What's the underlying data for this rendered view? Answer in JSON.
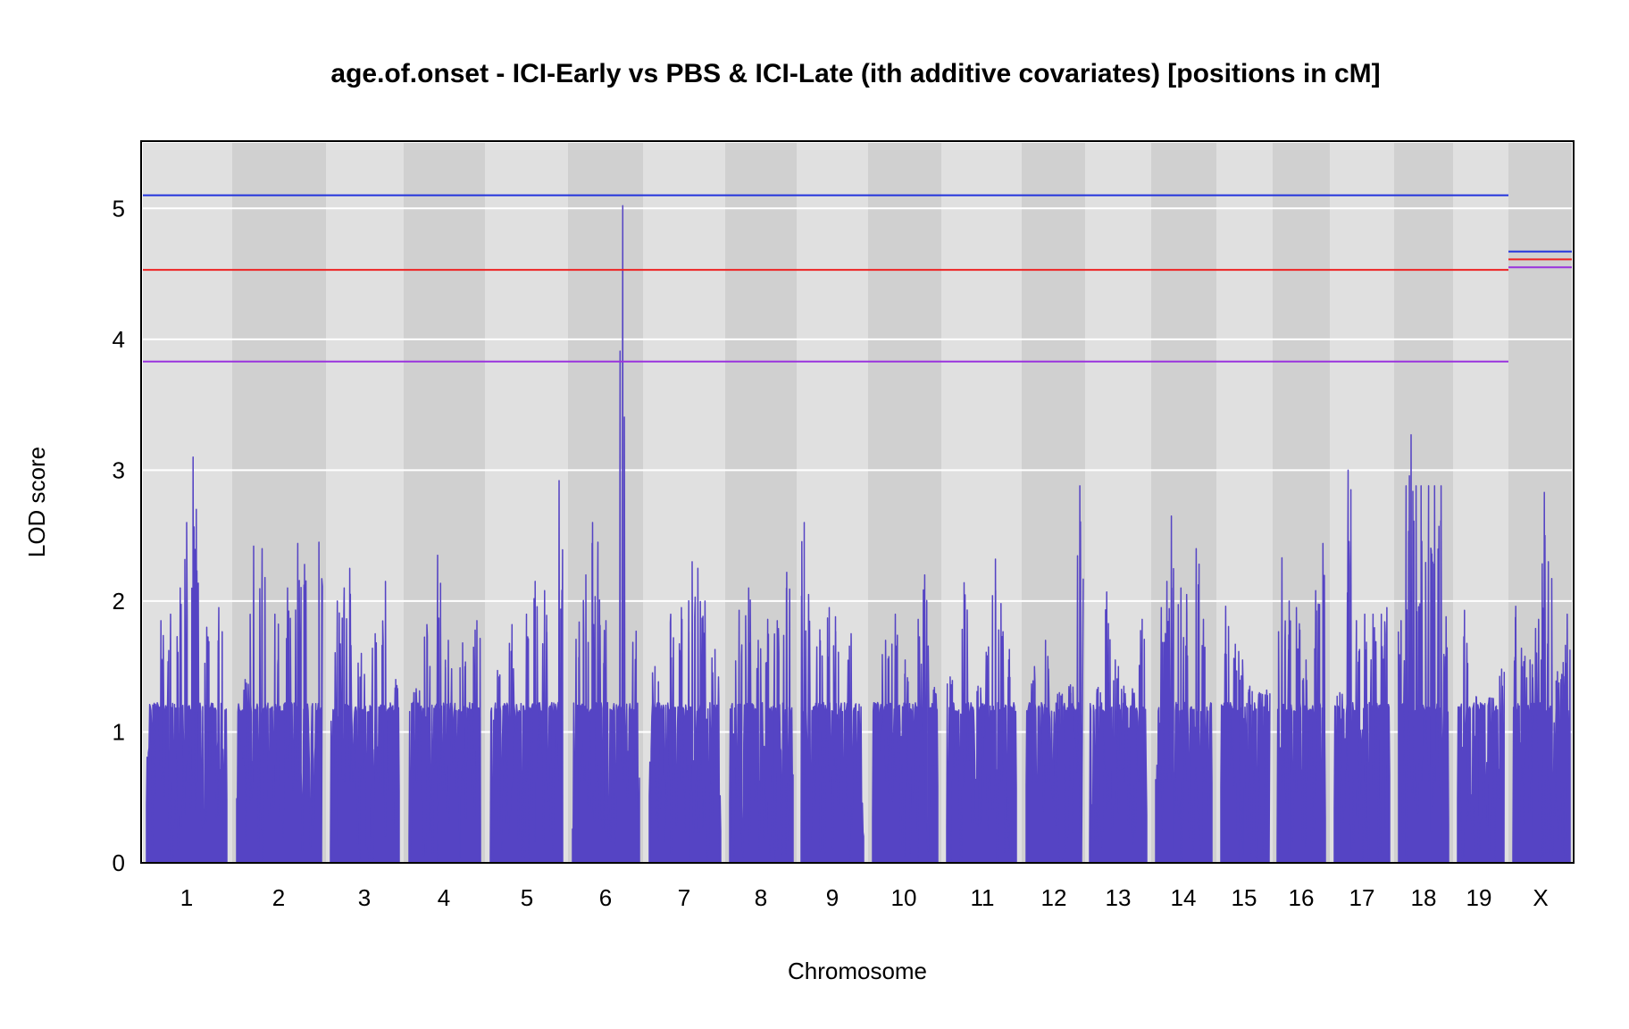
{
  "chart_data": {
    "type": "line",
    "title": "age.of.onset - ICI-Early vs PBS & ICI-Late (ith additive covariates) [positions in cM]",
    "xlabel": "Chromosome",
    "ylabel": "LOD score",
    "ylim": [
      0,
      5.5
    ],
    "yticks": [
      0,
      1,
      2,
      3,
      4,
      5
    ],
    "grid": true,
    "colors": {
      "lod": "#5544c4",
      "band_light": "#e0e0e0",
      "band_dark": "#d0d0d0",
      "threshold_blue": "#2233dd",
      "threshold_red": "#ee2222",
      "threshold_purple": "#9933dd"
    },
    "chromosomes": [
      {
        "label": "1",
        "baseline": 1.25,
        "peaks": [
          [
            0.18,
            1.85
          ],
          [
            0.3,
            1.9
          ],
          [
            0.42,
            2.1
          ],
          [
            0.5,
            2.6
          ],
          [
            0.58,
            3.1
          ],
          [
            0.62,
            2.7
          ],
          [
            0.75,
            1.8
          ],
          [
            0.9,
            1.95
          ]
        ]
      },
      {
        "label": "2",
        "baseline": 1.25,
        "peaks": [
          [
            0.1,
            1.4
          ],
          [
            0.2,
            2.42
          ],
          [
            0.3,
            2.4
          ],
          [
            0.45,
            1.9
          ],
          [
            0.6,
            2.1
          ],
          [
            0.72,
            2.44
          ],
          [
            0.8,
            2.28
          ],
          [
            0.97,
            2.45
          ]
        ]
      },
      {
        "label": "3",
        "baseline": 1.25,
        "peaks": [
          [
            0.1,
            2.0
          ],
          [
            0.2,
            2.1
          ],
          [
            0.28,
            2.25
          ],
          [
            0.45,
            1.6
          ],
          [
            0.65,
            1.75
          ],
          [
            0.8,
            2.15
          ],
          [
            0.95,
            1.4
          ]
        ]
      },
      {
        "label": "4",
        "baseline": 1.25,
        "peaks": [
          [
            0.1,
            1.33
          ],
          [
            0.25,
            1.82
          ],
          [
            0.4,
            2.35
          ],
          [
            0.55,
            1.7
          ],
          [
            0.75,
            1.68
          ],
          [
            0.95,
            1.85
          ]
        ]
      },
      {
        "label": "5",
        "baseline": 1.25,
        "peaks": [
          [
            0.1,
            1.47
          ],
          [
            0.3,
            1.82
          ],
          [
            0.5,
            1.9
          ],
          [
            0.62,
            2.15
          ],
          [
            0.75,
            2.08
          ],
          [
            0.95,
            2.92
          ]
        ]
      },
      {
        "label": "6",
        "baseline": 1.25,
        "peaks": [
          [
            0.1,
            1.84
          ],
          [
            0.2,
            2.2
          ],
          [
            0.3,
            2.6
          ],
          [
            0.38,
            2.45
          ],
          [
            0.5,
            1.85
          ],
          [
            0.75,
            5.02
          ],
          [
            0.88,
            0.85
          ],
          [
            0.95,
            1.77
          ]
        ]
      },
      {
        "label": "7",
        "baseline": 1.25,
        "peaks": [
          [
            0.08,
            1.5
          ],
          [
            0.3,
            1.9
          ],
          [
            0.45,
            1.95
          ],
          [
            0.6,
            2.3
          ],
          [
            0.68,
            2.25
          ],
          [
            0.78,
            2.0
          ],
          [
            0.92,
            1.63
          ]
        ]
      },
      {
        "label": "8",
        "baseline": 1.25,
        "peaks": [
          [
            0.15,
            1.93
          ],
          [
            0.3,
            2.1
          ],
          [
            0.45,
            1.7
          ],
          [
            0.6,
            1.86
          ],
          [
            0.75,
            1.85
          ],
          [
            0.9,
            2.22
          ]
        ]
      },
      {
        "label": "9",
        "baseline": 1.25,
        "peaks": [
          [
            0.05,
            2.6
          ],
          [
            0.12,
            2.05
          ],
          [
            0.3,
            1.78
          ],
          [
            0.45,
            1.95
          ],
          [
            0.55,
            1.88
          ],
          [
            0.8,
            1.75
          ]
        ]
      },
      {
        "label": "10",
        "baseline": 1.25,
        "peaks": [
          [
            0.2,
            1.7
          ],
          [
            0.35,
            1.9
          ],
          [
            0.5,
            1.55
          ],
          [
            0.7,
            1.86
          ],
          [
            0.8,
            2.2
          ],
          [
            0.95,
            1.34
          ]
        ]
      },
      {
        "label": "11",
        "baseline": 1.25,
        "peaks": [
          [
            0.05,
            1.42
          ],
          [
            0.25,
            2.14
          ],
          [
            0.45,
            1.35
          ],
          [
            0.6,
            1.65
          ],
          [
            0.7,
            2.32
          ],
          [
            0.78,
            1.98
          ],
          [
            0.9,
            1.63
          ]
        ]
      },
      {
        "label": "12",
        "baseline": 1.25,
        "peaks": [
          [
            0.15,
            1.5
          ],
          [
            0.35,
            1.7
          ],
          [
            0.6,
            1.3
          ],
          [
            0.8,
            1.36
          ],
          [
            0.97,
            2.88
          ]
        ]
      },
      {
        "label": "13",
        "baseline": 1.25,
        "peaks": [
          [
            0.15,
            1.34
          ],
          [
            0.3,
            2.07
          ],
          [
            0.45,
            1.55
          ],
          [
            0.6,
            1.35
          ],
          [
            0.75,
            1.33
          ],
          [
            0.92,
            1.86
          ]
        ]
      },
      {
        "label": "14",
        "baseline": 1.25,
        "peaks": [
          [
            0.1,
            1.95
          ],
          [
            0.2,
            2.15
          ],
          [
            0.28,
            2.65
          ],
          [
            0.45,
            2.1
          ],
          [
            0.55,
            2.05
          ],
          [
            0.72,
            2.4
          ],
          [
            0.85,
            1.86
          ]
        ]
      },
      {
        "label": "15",
        "baseline": 1.25,
        "peaks": [
          [
            0.1,
            1.96
          ],
          [
            0.3,
            1.67
          ],
          [
            0.45,
            1.55
          ],
          [
            0.6,
            1.35
          ],
          [
            0.8,
            1.3
          ],
          [
            0.95,
            1.32
          ]
        ]
      },
      {
        "label": "16",
        "baseline": 1.25,
        "peaks": [
          [
            0.1,
            2.33
          ],
          [
            0.25,
            2.0
          ],
          [
            0.4,
            1.95
          ],
          [
            0.6,
            1.55
          ],
          [
            0.8,
            2.08
          ],
          [
            0.95,
            2.44
          ]
        ]
      },
      {
        "label": "17",
        "baseline": 1.25,
        "peaks": [
          [
            0.1,
            1.3
          ],
          [
            0.25,
            3.0
          ],
          [
            0.3,
            2.85
          ],
          [
            0.4,
            1.85
          ],
          [
            0.55,
            1.9
          ],
          [
            0.7,
            1.9
          ],
          [
            0.85,
            1.9
          ],
          [
            0.95,
            1.95
          ]
        ]
      },
      {
        "label": "18",
        "baseline": 1.25,
        "peaks": [
          [
            0.05,
            1.85
          ],
          [
            0.15,
            2.88
          ],
          [
            0.25,
            3.27
          ],
          [
            0.35,
            2.88
          ],
          [
            0.45,
            2.88
          ],
          [
            0.6,
            2.88
          ],
          [
            0.72,
            2.88
          ],
          [
            0.85,
            2.88
          ],
          [
            0.95,
            1.88
          ]
        ]
      },
      {
        "label": "19",
        "baseline": 1.25,
        "peaks": [
          [
            0.15,
            1.93
          ],
          [
            0.4,
            1.27
          ],
          [
            0.7,
            1.26
          ],
          [
            0.95,
            1.48
          ]
        ]
      },
      {
        "label": "X",
        "baseline": 1.25,
        "peaks": [
          [
            0.05,
            1.96
          ],
          [
            0.15,
            1.64
          ],
          [
            0.3,
            1.55
          ],
          [
            0.45,
            1.86
          ],
          [
            0.55,
            2.83
          ],
          [
            0.62,
            2.3
          ],
          [
            0.78,
            1.46
          ],
          [
            0.88,
            1.53
          ],
          [
            0.95,
            1.9
          ]
        ]
      }
    ],
    "thresholds": {
      "autosomes": [
        {
          "color": "blue",
          "value": 5.1
        },
        {
          "color": "red",
          "value": 4.53
        },
        {
          "color": "purple",
          "value": 3.83
        }
      ],
      "x": [
        {
          "color": "blue",
          "value": 4.67
        },
        {
          "color": "red",
          "value": 4.61
        },
        {
          "color": "purple",
          "value": 4.55
        }
      ]
    }
  }
}
